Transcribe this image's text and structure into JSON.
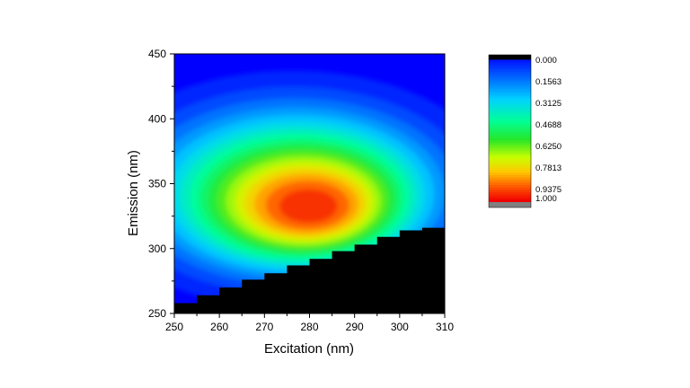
{
  "chart_data": {
    "type": "heatmap",
    "title": "",
    "xlabel": "Excitation (nm)",
    "ylabel": "Emission (nm)",
    "xlim": [
      250,
      310
    ],
    "ylim": [
      250,
      450
    ],
    "x_ticks": [
      250,
      260,
      270,
      280,
      290,
      300,
      310
    ],
    "y_ticks": [
      250,
      300,
      350,
      400,
      450
    ],
    "grid": false,
    "peak": {
      "x": 280,
      "y": 332,
      "intensity": 1.0
    },
    "masked_region": {
      "description": "no data (black)",
      "x": [
        250,
        255,
        260,
        265,
        270,
        275,
        280,
        285,
        290,
        295,
        300,
        305
      ],
      "y_upper": [
        258,
        264,
        270,
        276,
        281,
        287,
        292,
        298,
        303,
        309,
        314,
        316
      ]
    },
    "colorbar": {
      "labels": [
        "0.000",
        "0.1563",
        "0.3125",
        "0.4688",
        "0.6250",
        "0.7813",
        "0.9375",
        "1.000"
      ],
      "colors": [
        "#000000",
        "#0000ff",
        "#00a0ff",
        "#00ffd0",
        "#00e020",
        "#c8ff00",
        "#ffc000",
        "#ff3000",
        "#ff0000",
        "#808080"
      ]
    }
  }
}
